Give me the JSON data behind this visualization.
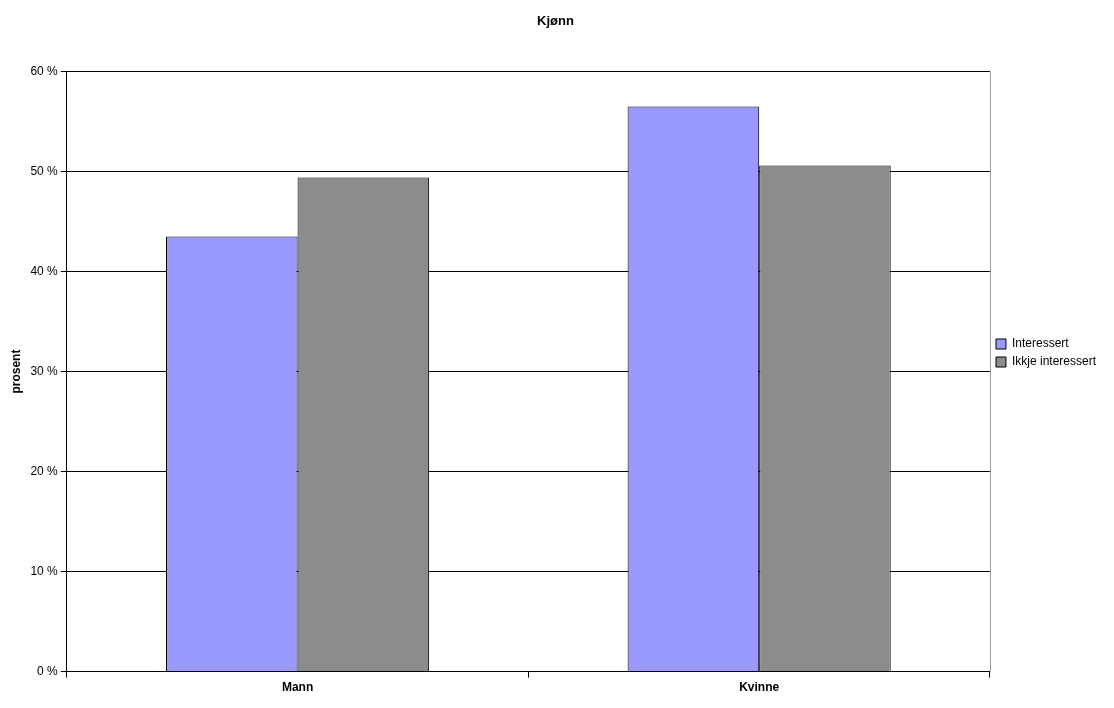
{
  "chart_data": {
    "type": "bar",
    "title": "Kjønn",
    "ylabel": "prosent",
    "categories": [
      "Mann",
      "Kvinne"
    ],
    "series": [
      {
        "name": "Interessert",
        "color": "#9999ff",
        "values": [
          43.5,
          56.5
        ]
      },
      {
        "name": "Ikkje interessert",
        "color": "#8c8c8c",
        "values": [
          49.4,
          50.6
        ]
      }
    ],
    "ylim": [
      0,
      60
    ],
    "yticks": [
      {
        "value": 0,
        "label": "0 %"
      },
      {
        "value": 10,
        "label": "10 %"
      },
      {
        "value": 20,
        "label": "20 %"
      },
      {
        "value": 30,
        "label": "30 %"
      },
      {
        "value": 40,
        "label": "40 %"
      },
      {
        "value": 50,
        "label": "50 %"
      },
      {
        "value": 60,
        "label": "60 %"
      }
    ],
    "grid": "y",
    "legend": "right"
  }
}
